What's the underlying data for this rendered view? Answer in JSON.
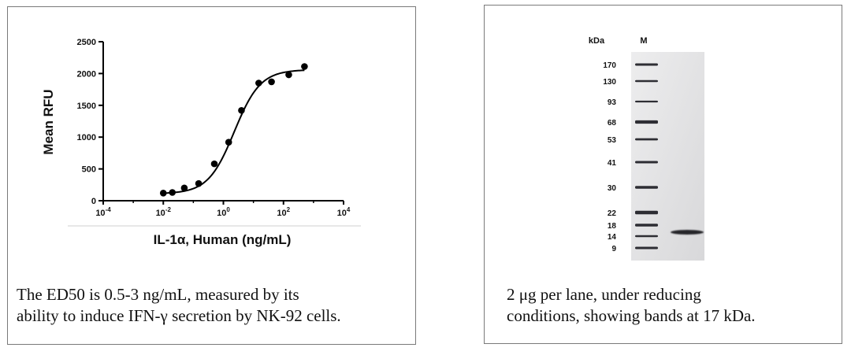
{
  "chart_data": [
    {
      "type": "scatter",
      "ylabel": "Mean RFU",
      "xlabel": "IL-1α, Human (ng/mL)",
      "x_scale": "log",
      "xlim": [
        0.0001,
        10000
      ],
      "ylim": [
        0,
        2500
      ],
      "x_ticks": [
        {
          "value": 0.0001,
          "base": "10",
          "exp": "-4"
        },
        {
          "value": 0.01,
          "base": "10",
          "exp": "-2"
        },
        {
          "value": 1,
          "base": "10",
          "exp": "0"
        },
        {
          "value": 100,
          "base": "10",
          "exp": "2"
        },
        {
          "value": 10000,
          "base": "10",
          "exp": "4"
        }
      ],
      "y_ticks": [
        0,
        500,
        1000,
        1500,
        2000,
        2500
      ],
      "points": [
        {
          "x": 0.01,
          "y": 120
        },
        {
          "x": 0.02,
          "y": 130
        },
        {
          "x": 0.05,
          "y": 200
        },
        {
          "x": 0.15,
          "y": 270
        },
        {
          "x": 0.5,
          "y": 580
        },
        {
          "x": 1.5,
          "y": 920
        },
        {
          "x": 4,
          "y": 1420
        },
        {
          "x": 15,
          "y": 1850
        },
        {
          "x": 40,
          "y": 1870
        },
        {
          "x": 150,
          "y": 1980
        },
        {
          "x": 500,
          "y": 2110
        }
      ],
      "fit_curve": {
        "bottom": 110,
        "top": 2060,
        "ec50": 2.3,
        "hill": 1.0,
        "from": 0.01,
        "to": 500
      }
    },
    {
      "type": "gel",
      "unit_label": "kDa",
      "lane_labels": [
        "M"
      ],
      "marker_kda": [
        "170",
        "130",
        "93",
        "68",
        "53",
        "41",
        "30",
        "22",
        "18",
        "14",
        "9"
      ],
      "sample_band_kda": "17"
    }
  ],
  "captions": {
    "left": [
      "The ED50 is 0.5-3 ng/mL, measured by its",
      "ability to induce IFN-γ secretion by NK-92 cells."
    ],
    "right": [
      "2 μg per lane, under reducing",
      "conditions, showing bands at 17 kDa."
    ]
  }
}
